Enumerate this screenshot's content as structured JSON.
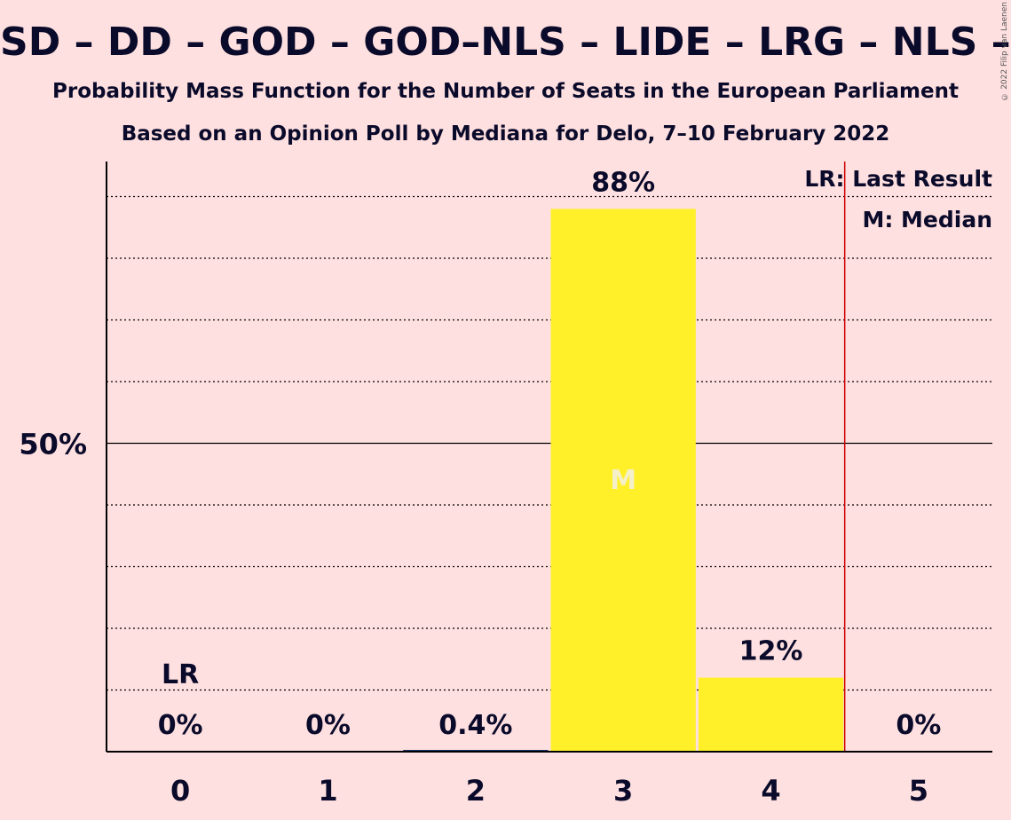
{
  "title": "SD – DD – GOD – GOD–NLS – LIDE – LRG – NLS – PS – PSS – SD",
  "subtitle": "Probability Mass Function for the Number of Seats in the European Parliament",
  "subtitle2": "Based on an Opinion Poll by Mediana for Delo, 7–10 February 2022",
  "copyright": "© 2022 Filip van Laenen",
  "chart_data": {
    "type": "bar",
    "categories": [
      "0",
      "1",
      "2",
      "3",
      "4",
      "5"
    ],
    "values": [
      0,
      0,
      0.4,
      88,
      12,
      0
    ],
    "value_labels": [
      "0%",
      "0%",
      "0.4%",
      "88%",
      "12%",
      "0%"
    ],
    "ylim": [
      0,
      100
    ],
    "y_tick_label": "50%",
    "y_tick_value": 50,
    "last_result_seat": 0,
    "last_result_marker": "LR",
    "median_seat": 3,
    "median_marker": "M",
    "majority_line_after_seat": 4,
    "legend": [
      "LR: Last Result",
      "M: Median"
    ],
    "legend_position": "top-right",
    "colors": {
      "bar": "#fff02a",
      "line_red": "#cc0000",
      "text": "#0a0a2a",
      "median_text": "#f5f0c8"
    }
  }
}
